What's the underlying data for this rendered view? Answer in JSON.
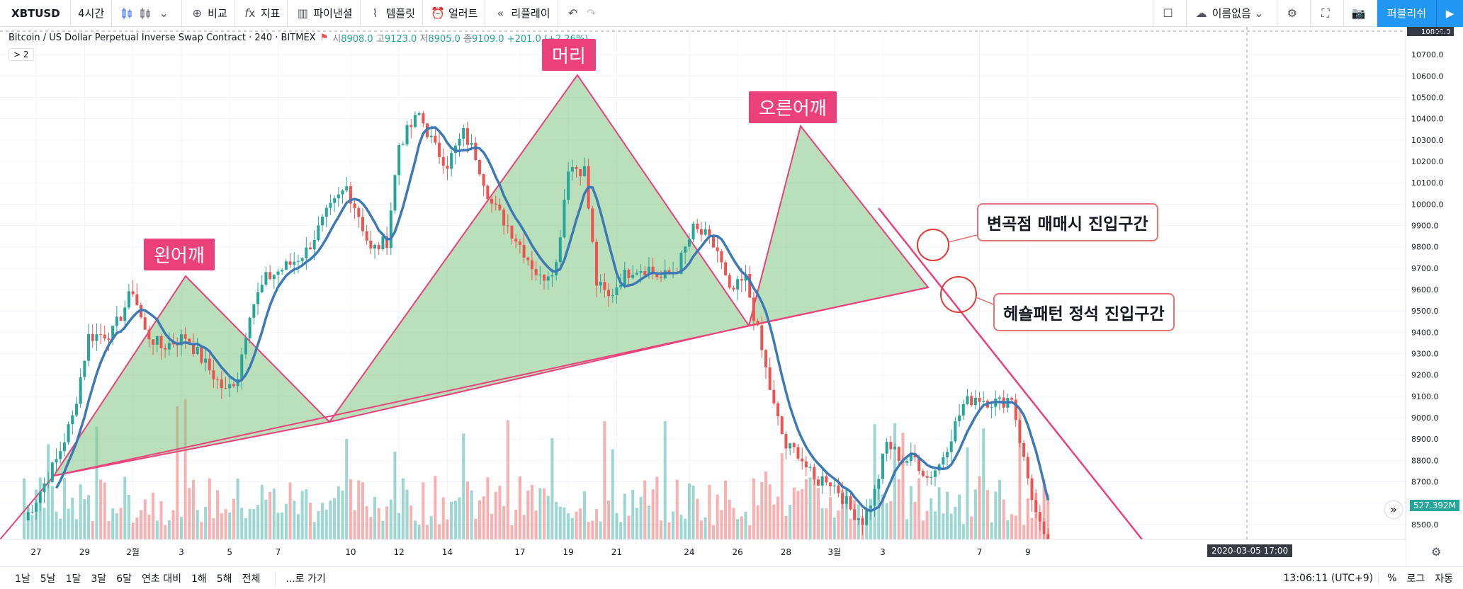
{
  "toolbar": {
    "symbol": "XBTUSD",
    "interval": "4시간",
    "compare": "비교",
    "indicators": "지표",
    "financials": "파이낸셜",
    "templates": "템플릿",
    "alert": "얼러트",
    "replay": "리플레이",
    "layout_name": "이름없음",
    "publish": "퍼블리쉬"
  },
  "legend": {
    "title": "Bitcoin / US Dollar Perpetual Inverse Swap Contract · 240 · BITMEX",
    "o_label": "시",
    "o": "8908.0",
    "h_label": "고",
    "h": "9123.0",
    "l_label": "저",
    "l": "8905.0",
    "c_label": "종",
    "c": "9109.0",
    "change": "+201.0 (+2.26%)",
    "toggle": "> 2"
  },
  "annotations": {
    "left_shoulder": "왼어깨",
    "head": "머리",
    "right_shoulder": "오른어깨",
    "callout_inflection": "변곡점 매매시 진입구간",
    "callout_hs": "헤숄패턴 정석 진입구간"
  },
  "price_axis": {
    "currency": "USD",
    "ticks": [
      "10700.0",
      "10600.0",
      "10500.0",
      "10400.0",
      "10300.0",
      "10200.0",
      "10100.0",
      "10000.0",
      "9900.0",
      "9800.0",
      "9700.0",
      "9600.0",
      "9500.0",
      "9400.0",
      "9300.0",
      "9200.0",
      "9100.0",
      "9000.0",
      "8900.0",
      "8800.0",
      "8700.0",
      "8600.0",
      "8500.0"
    ],
    "top_tag": "10800.0",
    "volume_tag": "527.392M"
  },
  "time_axis": {
    "labels": [
      {
        "t": "27",
        "i": 3
      },
      {
        "t": "29",
        "i": 15
      },
      {
        "t": "2월",
        "i": 27
      },
      {
        "t": "3",
        "i": 39
      },
      {
        "t": "5",
        "i": 51
      },
      {
        "t": "7",
        "i": 63
      },
      {
        "t": "10",
        "i": 81
      },
      {
        "t": "12",
        "i": 93
      },
      {
        "t": "14",
        "i": 105
      },
      {
        "t": "17",
        "i": 123
      },
      {
        "t": "19",
        "i": 135
      },
      {
        "t": "21",
        "i": 147
      },
      {
        "t": "24",
        "i": 165
      },
      {
        "t": "26",
        "i": 177
      },
      {
        "t": "28",
        "i": 189
      },
      {
        "t": "3월",
        "i": 201
      },
      {
        "t": "3",
        "i": 213
      },
      {
        "t": "7",
        "i": 237
      },
      {
        "t": "9",
        "i": 249
      }
    ],
    "crosshair_time": "2020-03-05   17:00"
  },
  "bottom_bar": {
    "ranges": [
      "1날",
      "5날",
      "1달",
      "3달",
      "6달",
      "연초 대비",
      "1해",
      "5해",
      "전체"
    ],
    "goto": "...로 가기",
    "clock": "13:06:11 (UTC+9)",
    "percent": "%",
    "log": "로그",
    "auto": "자동"
  },
  "colors": {
    "up": "#26a69a",
    "down": "#ef5350",
    "ma": "#3d7ab5",
    "pattern_fill": "#81c784",
    "pattern_line": "#ec407a"
  },
  "chart_data": {
    "type": "candlestick",
    "ylim": [
      8430,
      10830
    ],
    "ma_period": 8,
    "anchors": [
      [
        0,
        8520
      ],
      [
        3,
        8620
      ],
      [
        8,
        8800
      ],
      [
        12,
        9000
      ],
      [
        16,
        9380
      ],
      [
        22,
        9400
      ],
      [
        27,
        9600
      ],
      [
        30,
        9400
      ],
      [
        34,
        9330
      ],
      [
        40,
        9380
      ],
      [
        45,
        9250
      ],
      [
        50,
        9120
      ],
      [
        53,
        9200
      ],
      [
        56,
        9500
      ],
      [
        60,
        9650
      ],
      [
        66,
        9720
      ],
      [
        70,
        9780
      ],
      [
        75,
        9950
      ],
      [
        80,
        10080
      ],
      [
        83,
        9950
      ],
      [
        86,
        9780
      ],
      [
        90,
        9830
      ],
      [
        93,
        10280
      ],
      [
        98,
        10420
      ],
      [
        102,
        10260
      ],
      [
        105,
        10190
      ],
      [
        109,
        10330
      ],
      [
        112,
        10230
      ],
      [
        116,
        10000
      ],
      [
        120,
        9900
      ],
      [
        124,
        9780
      ],
      [
        128,
        9650
      ],
      [
        132,
        9720
      ],
      [
        135,
        10180
      ],
      [
        139,
        10160
      ],
      [
        142,
        9630
      ],
      [
        145,
        9560
      ],
      [
        148,
        9650
      ],
      [
        151,
        9700
      ],
      [
        155,
        9700
      ],
      [
        158,
        9650
      ],
      [
        162,
        9700
      ],
      [
        166,
        9880
      ],
      [
        169,
        9850
      ],
      [
        172,
        9780
      ],
      [
        175,
        9580
      ],
      [
        179,
        9650
      ],
      [
        182,
        9400
      ],
      [
        186,
        9050
      ],
      [
        189,
        8860
      ],
      [
        192,
        8840
      ],
      [
        196,
        8700
      ],
      [
        199,
        8720
      ],
      [
        202,
        8660
      ],
      [
        205,
        8570
      ],
      [
        208,
        8520
      ],
      [
        211,
        8650
      ],
      [
        214,
        8880
      ],
      [
        218,
        8800
      ],
      [
        221,
        8810
      ],
      [
        224,
        8720
      ],
      [
        227,
        8780
      ],
      [
        230,
        8920
      ],
      [
        233,
        9060
      ],
      [
        236,
        9100
      ],
      [
        239,
        9080
      ],
      [
        242,
        9070
      ],
      [
        245,
        9100
      ],
      [
        248,
        8800
      ],
      [
        251,
        8550
      ],
      [
        254,
        8360
      ]
    ]
  }
}
